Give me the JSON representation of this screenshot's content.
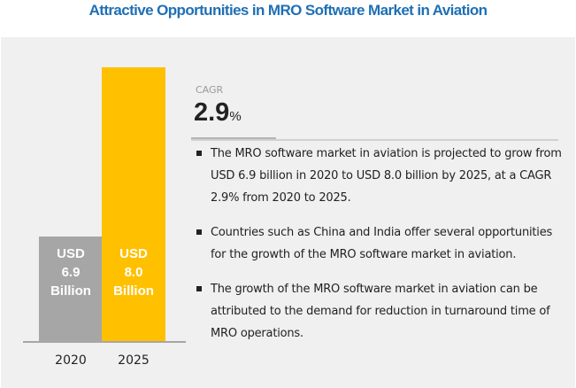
{
  "title": "Attractive Opportunities in MRO Software Market in Aviation",
  "cagr": {
    "label": "CAGR",
    "value": "2.9",
    "unit": "%"
  },
  "bullets": [
    "The MRO software market in aviation is projected to grow from USD 6.9 billion in 2020 to USD 8.0 billion by 2025, at a CAGR 2.9% from 2020 to 2025.",
    "Countries such as China and India offer several opportunities for the growth of the MRO software market in aviation.",
    "The growth of the MRO software market in aviation can be attributed to the demand for reduction in turnaround time of MRO operations."
  ],
  "colors": {
    "title": "#1f6fb5",
    "bar_2020": "#a6a6a6",
    "bar_2025": "#ffc000",
    "panel": "#f0f0f0"
  },
  "chart_data": {
    "type": "bar",
    "title": "Attractive Opportunities in MRO Software Market in Aviation",
    "categories": [
      "2020",
      "2025"
    ],
    "values": [
      6.9,
      8.0
    ],
    "unit": "USD Billion",
    "data_labels": [
      {
        "line1": "USD",
        "line2": "6.9",
        "line3": "Billion"
      },
      {
        "line1": "USD",
        "line2": "8.0",
        "line3": "Billion"
      }
    ],
    "xlabel": "",
    "ylabel": "",
    "grid": false,
    "axis_visible": false
  }
}
